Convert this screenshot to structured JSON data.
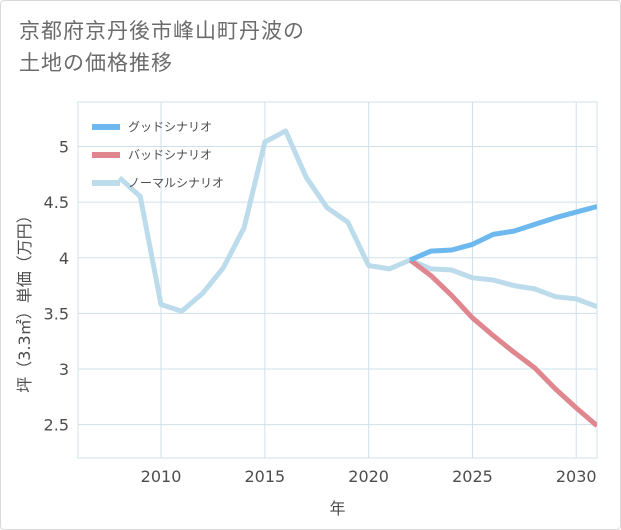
{
  "title_line1": "京都府京丹後市峰山町丹波の",
  "title_line2": "土地の価格推移",
  "chart_data": {
    "type": "line",
    "xlabel": "年",
    "ylabel": "坪（3.3㎡）単価（万円）",
    "xlim": [
      2006,
      2031
    ],
    "ylim": [
      2.2,
      5.4
    ],
    "x_ticks": [
      2010,
      2015,
      2020,
      2025,
      2030
    ],
    "y_ticks": [
      2.5,
      3,
      3.5,
      4,
      4.5,
      5
    ],
    "grid": true,
    "legend_position": "top-left",
    "series": [
      {
        "name": "グッドシナリオ",
        "color": "#6cb8ef",
        "points": [
          [
            2022,
            3.98
          ],
          [
            2023,
            4.06
          ],
          [
            2024,
            4.07
          ],
          [
            2025,
            4.12
          ],
          [
            2026,
            4.21
          ],
          [
            2027,
            4.24
          ],
          [
            2028,
            4.3
          ],
          [
            2029,
            4.36
          ],
          [
            2030,
            4.41
          ],
          [
            2031,
            4.46
          ]
        ]
      },
      {
        "name": "バッドシナリオ",
        "color": "#e0868e",
        "points": [
          [
            2022,
            3.98
          ],
          [
            2023,
            3.84
          ],
          [
            2024,
            3.66
          ],
          [
            2025,
            3.46
          ],
          [
            2026,
            3.3
          ],
          [
            2027,
            3.15
          ],
          [
            2028,
            3.01
          ],
          [
            2029,
            2.82
          ],
          [
            2030,
            2.65
          ],
          [
            2031,
            2.49
          ]
        ]
      },
      {
        "name": "ノーマルシナリオ",
        "color": "#bcdcec",
        "points": [
          [
            2008,
            4.72
          ],
          [
            2009,
            4.55
          ],
          [
            2010,
            3.58
          ],
          [
            2011,
            3.52
          ],
          [
            2012,
            3.68
          ],
          [
            2013,
            3.91
          ],
          [
            2014,
            4.27
          ],
          [
            2015,
            5.04
          ],
          [
            2016,
            5.14
          ],
          [
            2017,
            4.72
          ],
          [
            2018,
            4.45
          ],
          [
            2019,
            4.32
          ],
          [
            2020,
            3.93
          ],
          [
            2021,
            3.9
          ],
          [
            2022,
            3.98
          ],
          [
            2023,
            3.9
          ],
          [
            2024,
            3.89
          ],
          [
            2025,
            3.82
          ],
          [
            2026,
            3.8
          ],
          [
            2027,
            3.75
          ],
          [
            2028,
            3.72
          ],
          [
            2029,
            3.65
          ],
          [
            2030,
            3.63
          ],
          [
            2031,
            3.56
          ]
        ]
      }
    ]
  }
}
